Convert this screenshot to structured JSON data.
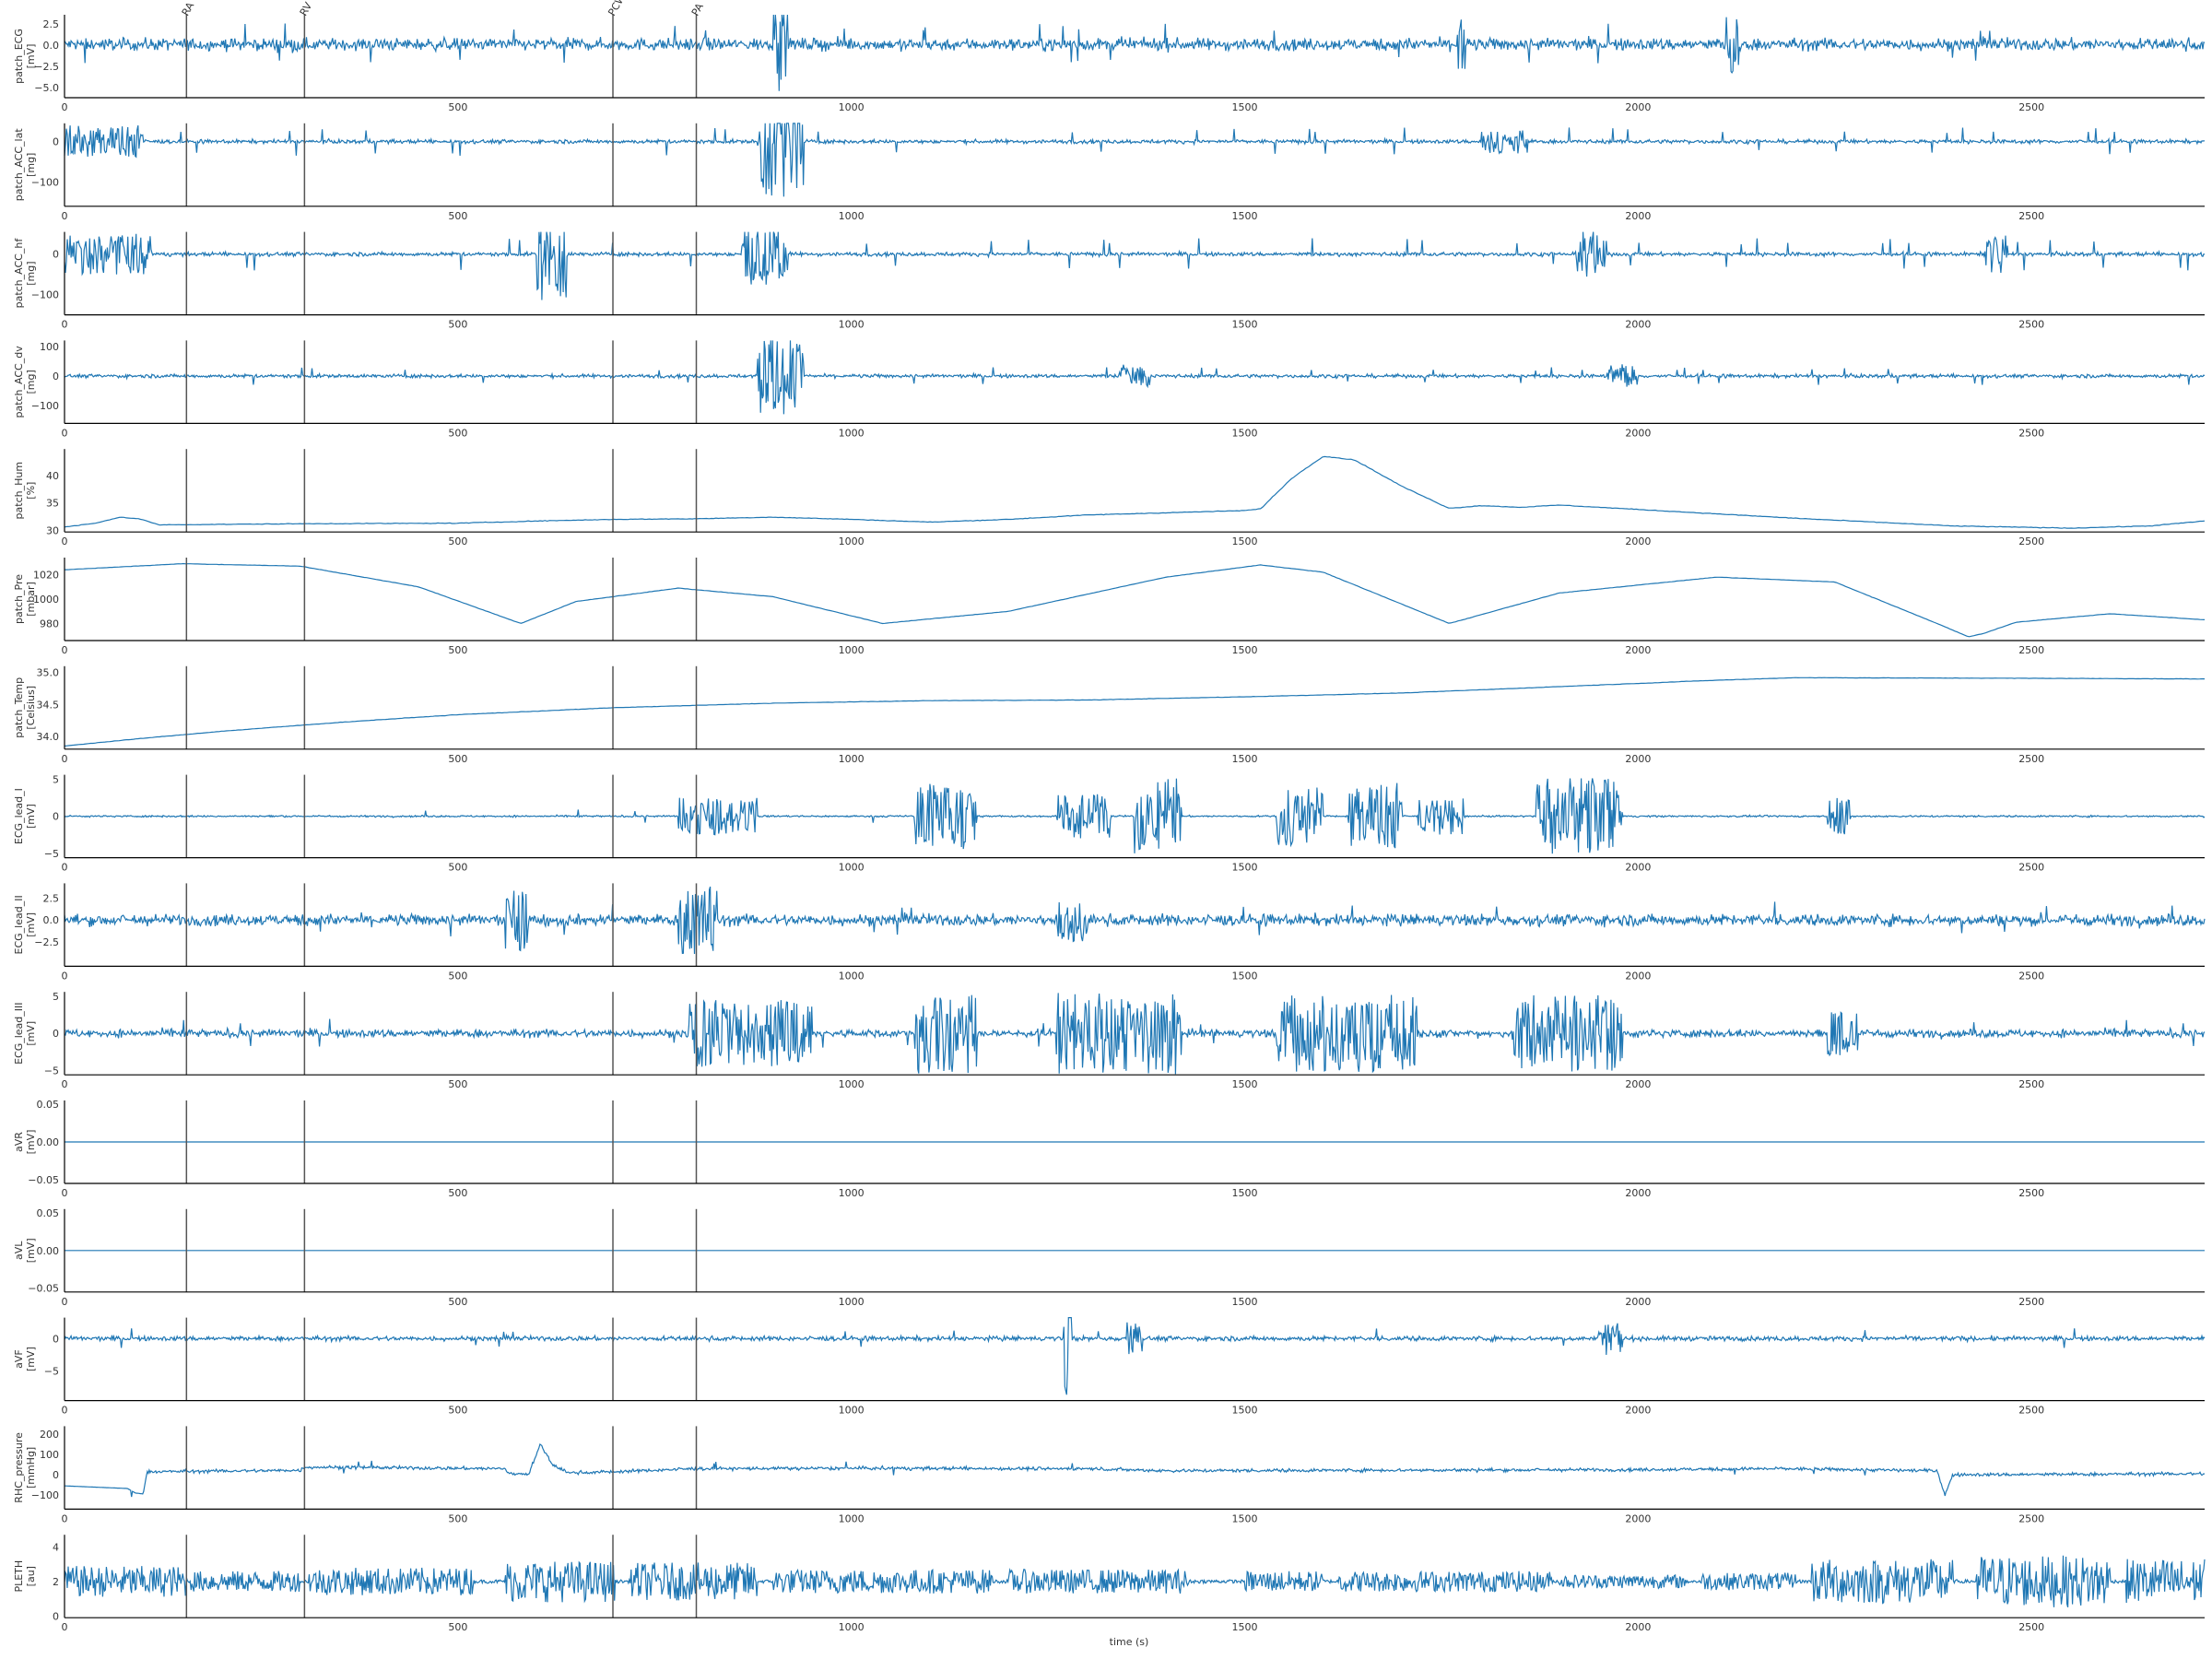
{
  "figure": {
    "xlabel": "time (s)",
    "line_color": "#1f77b4",
    "marker_color": "#555555",
    "axis_color": "#000000"
  },
  "chart_data": {
    "type": "line",
    "x_range": [
      0,
      2720
    ],
    "x_ticks": [
      0,
      500,
      1000,
      1500,
      2000,
      2500
    ],
    "events": [
      {
        "name": "RA",
        "t": 155
      },
      {
        "name": "RV",
        "t": 305
      },
      {
        "name": "PCW",
        "t": 697
      },
      {
        "name": "PA",
        "t": 803
      }
    ],
    "panels": [
      {
        "id": "patch_ecg",
        "ylabel": [
          "patch_ECG",
          "[mV]"
        ],
        "ylim": [
          -6.2,
          3.6
        ],
        "yticks": [
          2.5,
          0.0,
          -2.5,
          -5.0
        ],
        "ytick_labels": [
          "2.5",
          "0.0",
          "−2.5",
          "−5.0"
        ],
        "events": "all",
        "event_labels": true,
        "signal": {
          "kind": "noise",
          "base": 0.1,
          "amp": 1.2,
          "spike_rate": 0.01,
          "spike": 2.5,
          "bursts": [
            [
              900,
              920,
              6.3
            ],
            [
              2110,
              2130,
              3.5
            ],
            [
              1770,
              1780,
              3.0
            ]
          ]
        }
      },
      {
        "id": "patch_acc_lat",
        "ylabel": [
          "patch_ACC_lat",
          "[mg]"
        ],
        "ylim": [
          -160,
          45
        ],
        "yticks": [
          0,
          -100
        ],
        "ytick_labels": [
          "0",
          "−100"
        ],
        "events": "all",
        "signal": {
          "kind": "noise",
          "base": 0,
          "amp": 8,
          "spike_rate": 0.015,
          "spike": 35,
          "bursts": [
            [
              0,
              100,
              40
            ],
            [
              880,
              940,
              150
            ],
            [
              1800,
              1860,
              30
            ]
          ]
        }
      },
      {
        "id": "patch_acc_hf",
        "ylabel": [
          "patch_ACC_hf",
          "[mg]"
        ],
        "ylim": [
          -150,
          55
        ],
        "yticks": [
          0,
          -100
        ],
        "ytick_labels": [
          "0",
          "−100"
        ],
        "events": "all",
        "signal": {
          "kind": "noise",
          "base": 0,
          "amp": 8,
          "spike_rate": 0.015,
          "spike": 40,
          "bursts": [
            [
              0,
              110,
              50
            ],
            [
              600,
              640,
              120
            ],
            [
              860,
              920,
              80
            ],
            [
              1920,
              1960,
              60
            ],
            [
              2440,
              2470,
              50
            ]
          ]
        }
      },
      {
        "id": "patch_acc_dv",
        "ylabel": [
          "patch_ACC_dv",
          "[mg]"
        ],
        "ylim": [
          -160,
          120
        ],
        "yticks": [
          100,
          0,
          -100
        ],
        "ytick_labels": [
          "100",
          "0",
          "−100"
        ],
        "events": "all",
        "signal": {
          "kind": "noise",
          "base": 0,
          "amp": 10,
          "spike_rate": 0.015,
          "spike": 30,
          "bursts": [
            [
              880,
              940,
              130
            ],
            [
              1340,
              1380,
              40
            ],
            [
              1960,
              2000,
              40
            ]
          ]
        }
      },
      {
        "id": "patch_hum",
        "ylabel": [
          "patch_Hum",
          "[%]"
        ],
        "ylim": [
          29.7,
          44.8
        ],
        "yticks": [
          40,
          35,
          30
        ],
        "ytick_labels": [
          "40",
          "35",
          "30"
        ],
        "events": "all",
        "signal": {
          "kind": "curve",
          "points": [
            [
              0,
              30.6
            ],
            [
              40,
              31.3
            ],
            [
              70,
              32.4
            ],
            [
              95,
              32.1
            ],
            [
              120,
              31.0
            ],
            [
              300,
              31.2
            ],
            [
              500,
              31.3
            ],
            [
              600,
              31.7
            ],
            [
              700,
              32.0
            ],
            [
              800,
              32.1
            ],
            [
              900,
              32.4
            ],
            [
              1000,
              32.0
            ],
            [
              1100,
              31.5
            ],
            [
              1200,
              32.0
            ],
            [
              1300,
              32.8
            ],
            [
              1400,
              33.2
            ],
            [
              1500,
              33.6
            ],
            [
              1520,
              33.9
            ],
            [
              1560,
              39.5
            ],
            [
              1600,
              43.5
            ],
            [
              1640,
              42.8
            ],
            [
              1700,
              38.0
            ],
            [
              1760,
              34.0
            ],
            [
              1800,
              34.5
            ],
            [
              1850,
              34.2
            ],
            [
              1900,
              34.6
            ],
            [
              2000,
              33.8
            ],
            [
              2200,
              32.2
            ],
            [
              2400,
              30.8
            ],
            [
              2550,
              30.4
            ],
            [
              2650,
              30.8
            ],
            [
              2720,
              31.7
            ]
          ],
          "noise": 0.1
        }
      },
      {
        "id": "patch_pre",
        "ylabel": [
          "patch_Pre",
          "[mbar]"
        ],
        "ylim": [
          966,
          1034
        ],
        "yticks": [
          1020,
          1000,
          980
        ],
        "ytick_labels": [
          "1020",
          "1000",
          "980"
        ],
        "events": "all",
        "signal": {
          "kind": "curve",
          "points": [
            [
              0,
              1024
            ],
            [
              150,
              1029
            ],
            [
              300,
              1027
            ],
            [
              450,
              1010
            ],
            [
              580,
              980
            ],
            [
              650,
              998
            ],
            [
              780,
              1009
            ],
            [
              900,
              1002
            ],
            [
              1040,
              980
            ],
            [
              1200,
              990
            ],
            [
              1400,
              1018
            ],
            [
              1520,
              1028
            ],
            [
              1600,
              1022
            ],
            [
              1760,
              980
            ],
            [
              1900,
              1005
            ],
            [
              2100,
              1018
            ],
            [
              2250,
              1014
            ],
            [
              2380,
              980
            ],
            [
              2420,
              969
            ],
            [
              2440,
              972
            ],
            [
              2480,
              981
            ],
            [
              2600,
              988
            ],
            [
              2720,
              983
            ]
          ],
          "noise": 0.2
        }
      },
      {
        "id": "patch_temp",
        "ylabel": [
          "patch_Temp",
          "[Celsius]"
        ],
        "ylim": [
          33.8,
          35.1
        ],
        "yticks": [
          35.0,
          34.5,
          34.0
        ],
        "ytick_labels": [
          "35.0",
          "34.5",
          "34.0"
        ],
        "events": "all",
        "signal": {
          "kind": "curve",
          "points": [
            [
              0,
              33.85
            ],
            [
              100,
              33.97
            ],
            [
              200,
              34.08
            ],
            [
              350,
              34.22
            ],
            [
              500,
              34.34
            ],
            [
              700,
              34.45
            ],
            [
              900,
              34.52
            ],
            [
              1100,
              34.56
            ],
            [
              1300,
              34.57
            ],
            [
              1500,
              34.62
            ],
            [
              1700,
              34.68
            ],
            [
              1900,
              34.78
            ],
            [
              2100,
              34.88
            ],
            [
              2200,
              34.92
            ],
            [
              2500,
              34.91
            ],
            [
              2720,
              34.9
            ]
          ],
          "noise": 0.005
        }
      },
      {
        "id": "ecg_lead_i",
        "ylabel": [
          "ECG_lead_I",
          "[mV]"
        ],
        "ylim": [
          -5.6,
          5.6
        ],
        "yticks": [
          5,
          0,
          -5
        ],
        "ytick_labels": [
          "5",
          "0",
          "−5"
        ],
        "events": "all",
        "signal": {
          "kind": "noise",
          "base": 0,
          "amp": 0.2,
          "spike_rate": 0.005,
          "spike": 1.0,
          "bursts": [
            [
              780,
              880,
              2.5
            ],
            [
              1080,
              1160,
              4.5
            ],
            [
              1260,
              1330,
              3.0
            ],
            [
              1360,
              1420,
              5.2
            ],
            [
              1540,
              1600,
              4.0
            ],
            [
              1630,
              1700,
              4.5
            ],
            [
              1720,
              1780,
              2.5
            ],
            [
              1870,
              1980,
              5.2
            ],
            [
              2240,
              2270,
              2.5
            ]
          ]
        }
      },
      {
        "id": "ecg_lead_ii",
        "ylabel": [
          "ECG_lead_II",
          "[mV]"
        ],
        "ylim": [
          -5.3,
          4.2
        ],
        "yticks": [
          2.5,
          0.0,
          -2.5
        ],
        "ytick_labels": [
          "2.5",
          "0.0",
          "−2.5"
        ],
        "events": "all",
        "signal": {
          "kind": "noise",
          "base": 0,
          "amp": 1.1,
          "spike_rate": 0.01,
          "spike": 2.2,
          "bursts": [
            [
              560,
              590,
              3.5
            ],
            [
              780,
              830,
              4.0
            ],
            [
              1260,
              1300,
              2.5
            ]
          ]
        }
      },
      {
        "id": "ecg_lead_iii",
        "ylabel": [
          "ECG_lead_III",
          "[mV]"
        ],
        "ylim": [
          -5.6,
          5.6
        ],
        "yticks": [
          5,
          0,
          -5
        ],
        "ytick_labels": [
          "5",
          "0",
          "−5"
        ],
        "events": "all",
        "signal": {
          "kind": "noise",
          "base": 0,
          "amp": 0.9,
          "spike_rate": 0.01,
          "spike": 2.0,
          "bursts": [
            [
              790,
              950,
              4.5
            ],
            [
              1080,
              1160,
              5.5
            ],
            [
              1260,
              1420,
              5.5
            ],
            [
              1540,
              1720,
              5.2
            ],
            [
              1840,
              1980,
              5.2
            ],
            [
              2240,
              2280,
              3.0
            ]
          ]
        }
      },
      {
        "id": "avr",
        "ylabel": [
          "aVR",
          "[mV]"
        ],
        "ylim": [
          -0.055,
          0.055
        ],
        "yticks": [
          0.05,
          0.0,
          -0.05
        ],
        "ytick_labels": [
          "0.05",
          "0.00",
          "−0.05"
        ],
        "events": "all",
        "signal": {
          "kind": "flat",
          "value": 0
        }
      },
      {
        "id": "avl",
        "ylabel": [
          "aVL",
          "[mV]"
        ],
        "ylim": [
          -0.055,
          0.055
        ],
        "yticks": [
          0.05,
          0.0,
          -0.05
        ],
        "ytick_labels": [
          "0.05",
          "0.00",
          "−0.05"
        ],
        "events": "all",
        "signal": {
          "kind": "flat",
          "value": 0
        }
      },
      {
        "id": "avf",
        "ylabel": [
          "aVF",
          "[mV]"
        ],
        "ylim": [
          -9.5,
          3.2
        ],
        "yticks": [
          0,
          -5
        ],
        "ytick_labels": [
          "0",
          "−5"
        ],
        "events": "all",
        "signal": {
          "kind": "noise",
          "base": 0,
          "amp": 0.6,
          "spike_rate": 0.01,
          "spike": 1.6,
          "bursts": [
            [
              1270,
              1280,
              9.0
            ],
            [
              1350,
              1370,
              2.5
            ],
            [
              1950,
              1980,
              2.5
            ]
          ]
        }
      },
      {
        "id": "rhc_pressure",
        "ylabel": [
          "RHC_pressure",
          "[mmHg]"
        ],
        "ylim": [
          -170,
          240
        ],
        "yticks": [
          200,
          100,
          0,
          -100
        ],
        "ytick_labels": [
          "200",
          "100",
          "0",
          "−100"
        ],
        "events": "all",
        "signal": {
          "kind": "segments",
          "points": [
            [
              0,
              -55
            ],
            [
              80,
              -68
            ],
            [
              90,
              -90
            ],
            [
              100,
              -95
            ],
            [
              105,
              15
            ],
            [
              300,
              22
            ],
            [
              305,
              38
            ],
            [
              560,
              30
            ],
            [
              565,
              5
            ],
            [
              590,
              5
            ],
            [
              605,
              150
            ],
            [
              620,
              50
            ],
            [
              640,
              10
            ],
            [
              700,
              15
            ],
            [
              800,
              30
            ],
            [
              1000,
              32
            ],
            [
              1300,
              30
            ],
            [
              1400,
              20
            ],
            [
              1600,
              22
            ],
            [
              2000,
              25
            ],
            [
              2180,
              30
            ],
            [
              2380,
              20
            ],
            [
              2390,
              -100
            ],
            [
              2400,
              0
            ],
            [
              2720,
              5
            ]
          ],
          "amp": 14,
          "spike_rate": 0.006,
          "spike": 30
        }
      },
      {
        "id": "pleth",
        "ylabel": [
          "PLETH",
          "[au]"
        ],
        "ylim": [
          -0.1,
          4.7
        ],
        "yticks": [
          4,
          2,
          0
        ],
        "ytick_labels": [
          "4",
          "2",
          "0"
        ],
        "events": "all",
        "signal": {
          "kind": "blocks",
          "base": 2.0,
          "blocks": [
            [
              0,
              155,
              0.9
            ],
            [
              160,
              300,
              0.6
            ],
            [
              310,
              520,
              0.8
            ],
            [
              560,
              700,
              1.2
            ],
            [
              720,
              880,
              1.1
            ],
            [
              900,
              1180,
              0.7
            ],
            [
              1200,
              1430,
              0.7
            ],
            [
              1500,
              1600,
              0.6
            ],
            [
              1620,
              1890,
              0.6
            ],
            [
              1900,
              2060,
              0.4
            ],
            [
              2080,
              2200,
              0.5
            ],
            [
              2220,
              2400,
              1.3
            ],
            [
              2430,
              2600,
              1.5
            ],
            [
              2620,
              2720,
              1.3
            ]
          ],
          "gap_amp": 0.1
        }
      }
    ]
  }
}
